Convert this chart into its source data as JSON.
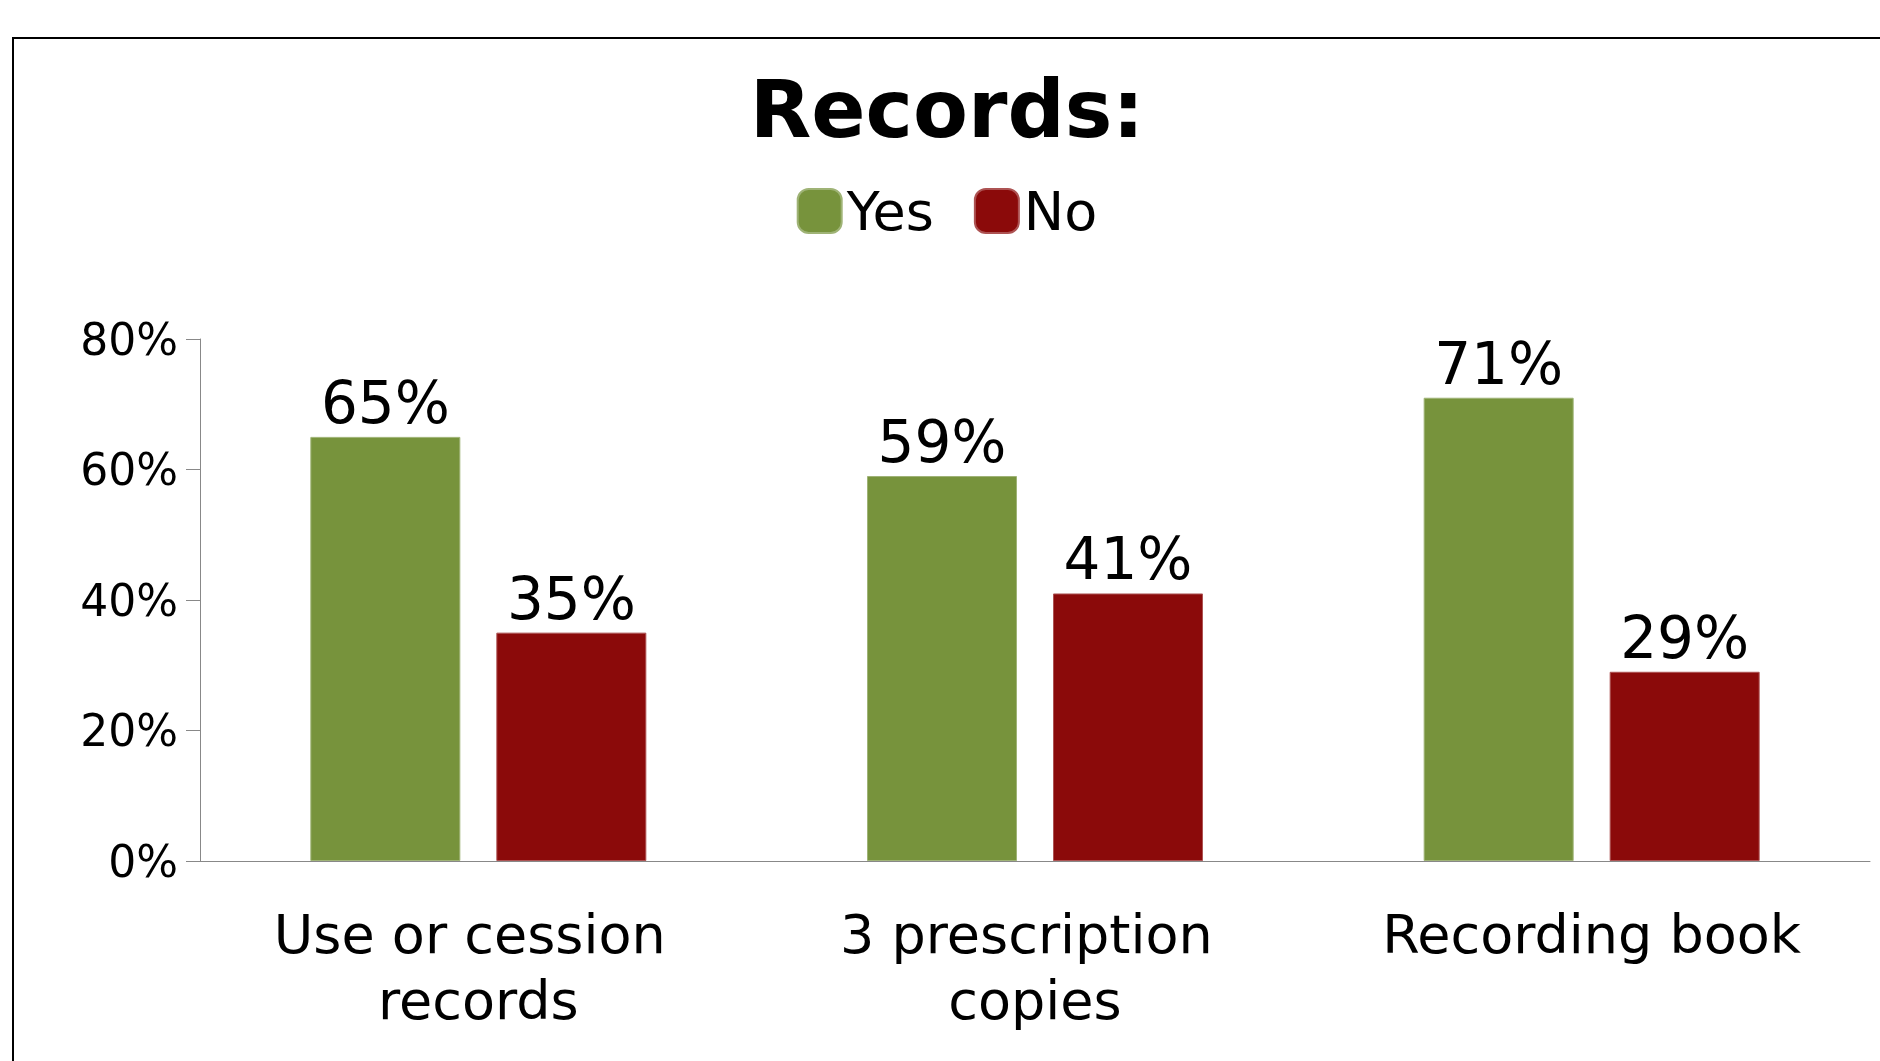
{
  "chart_data": {
    "type": "bar",
    "title": "Records:",
    "categories": [
      "Use or cession records",
      "3 prescription copies",
      "Recording book"
    ],
    "series": [
      {
        "name": "Yes",
        "color": "#77933c",
        "values": [
          65,
          59,
          71
        ],
        "value_labels": [
          "65%",
          "59%",
          "71%"
        ]
      },
      {
        "name": "No",
        "color": "#8b0a0a",
        "values": [
          35,
          41,
          29
        ],
        "value_labels": [
          "35%",
          "41%",
          "29%"
        ]
      }
    ],
    "ylim": [
      0,
      80
    ],
    "yticks": [
      {
        "value": 0,
        "label": "0%"
      },
      {
        "value": 20,
        "label": "20%"
      },
      {
        "value": 40,
        "label": "40%"
      },
      {
        "value": 60,
        "label": "60%"
      },
      {
        "value": 80,
        "label": "80%"
      }
    ],
    "grid": false,
    "legend": "top"
  }
}
